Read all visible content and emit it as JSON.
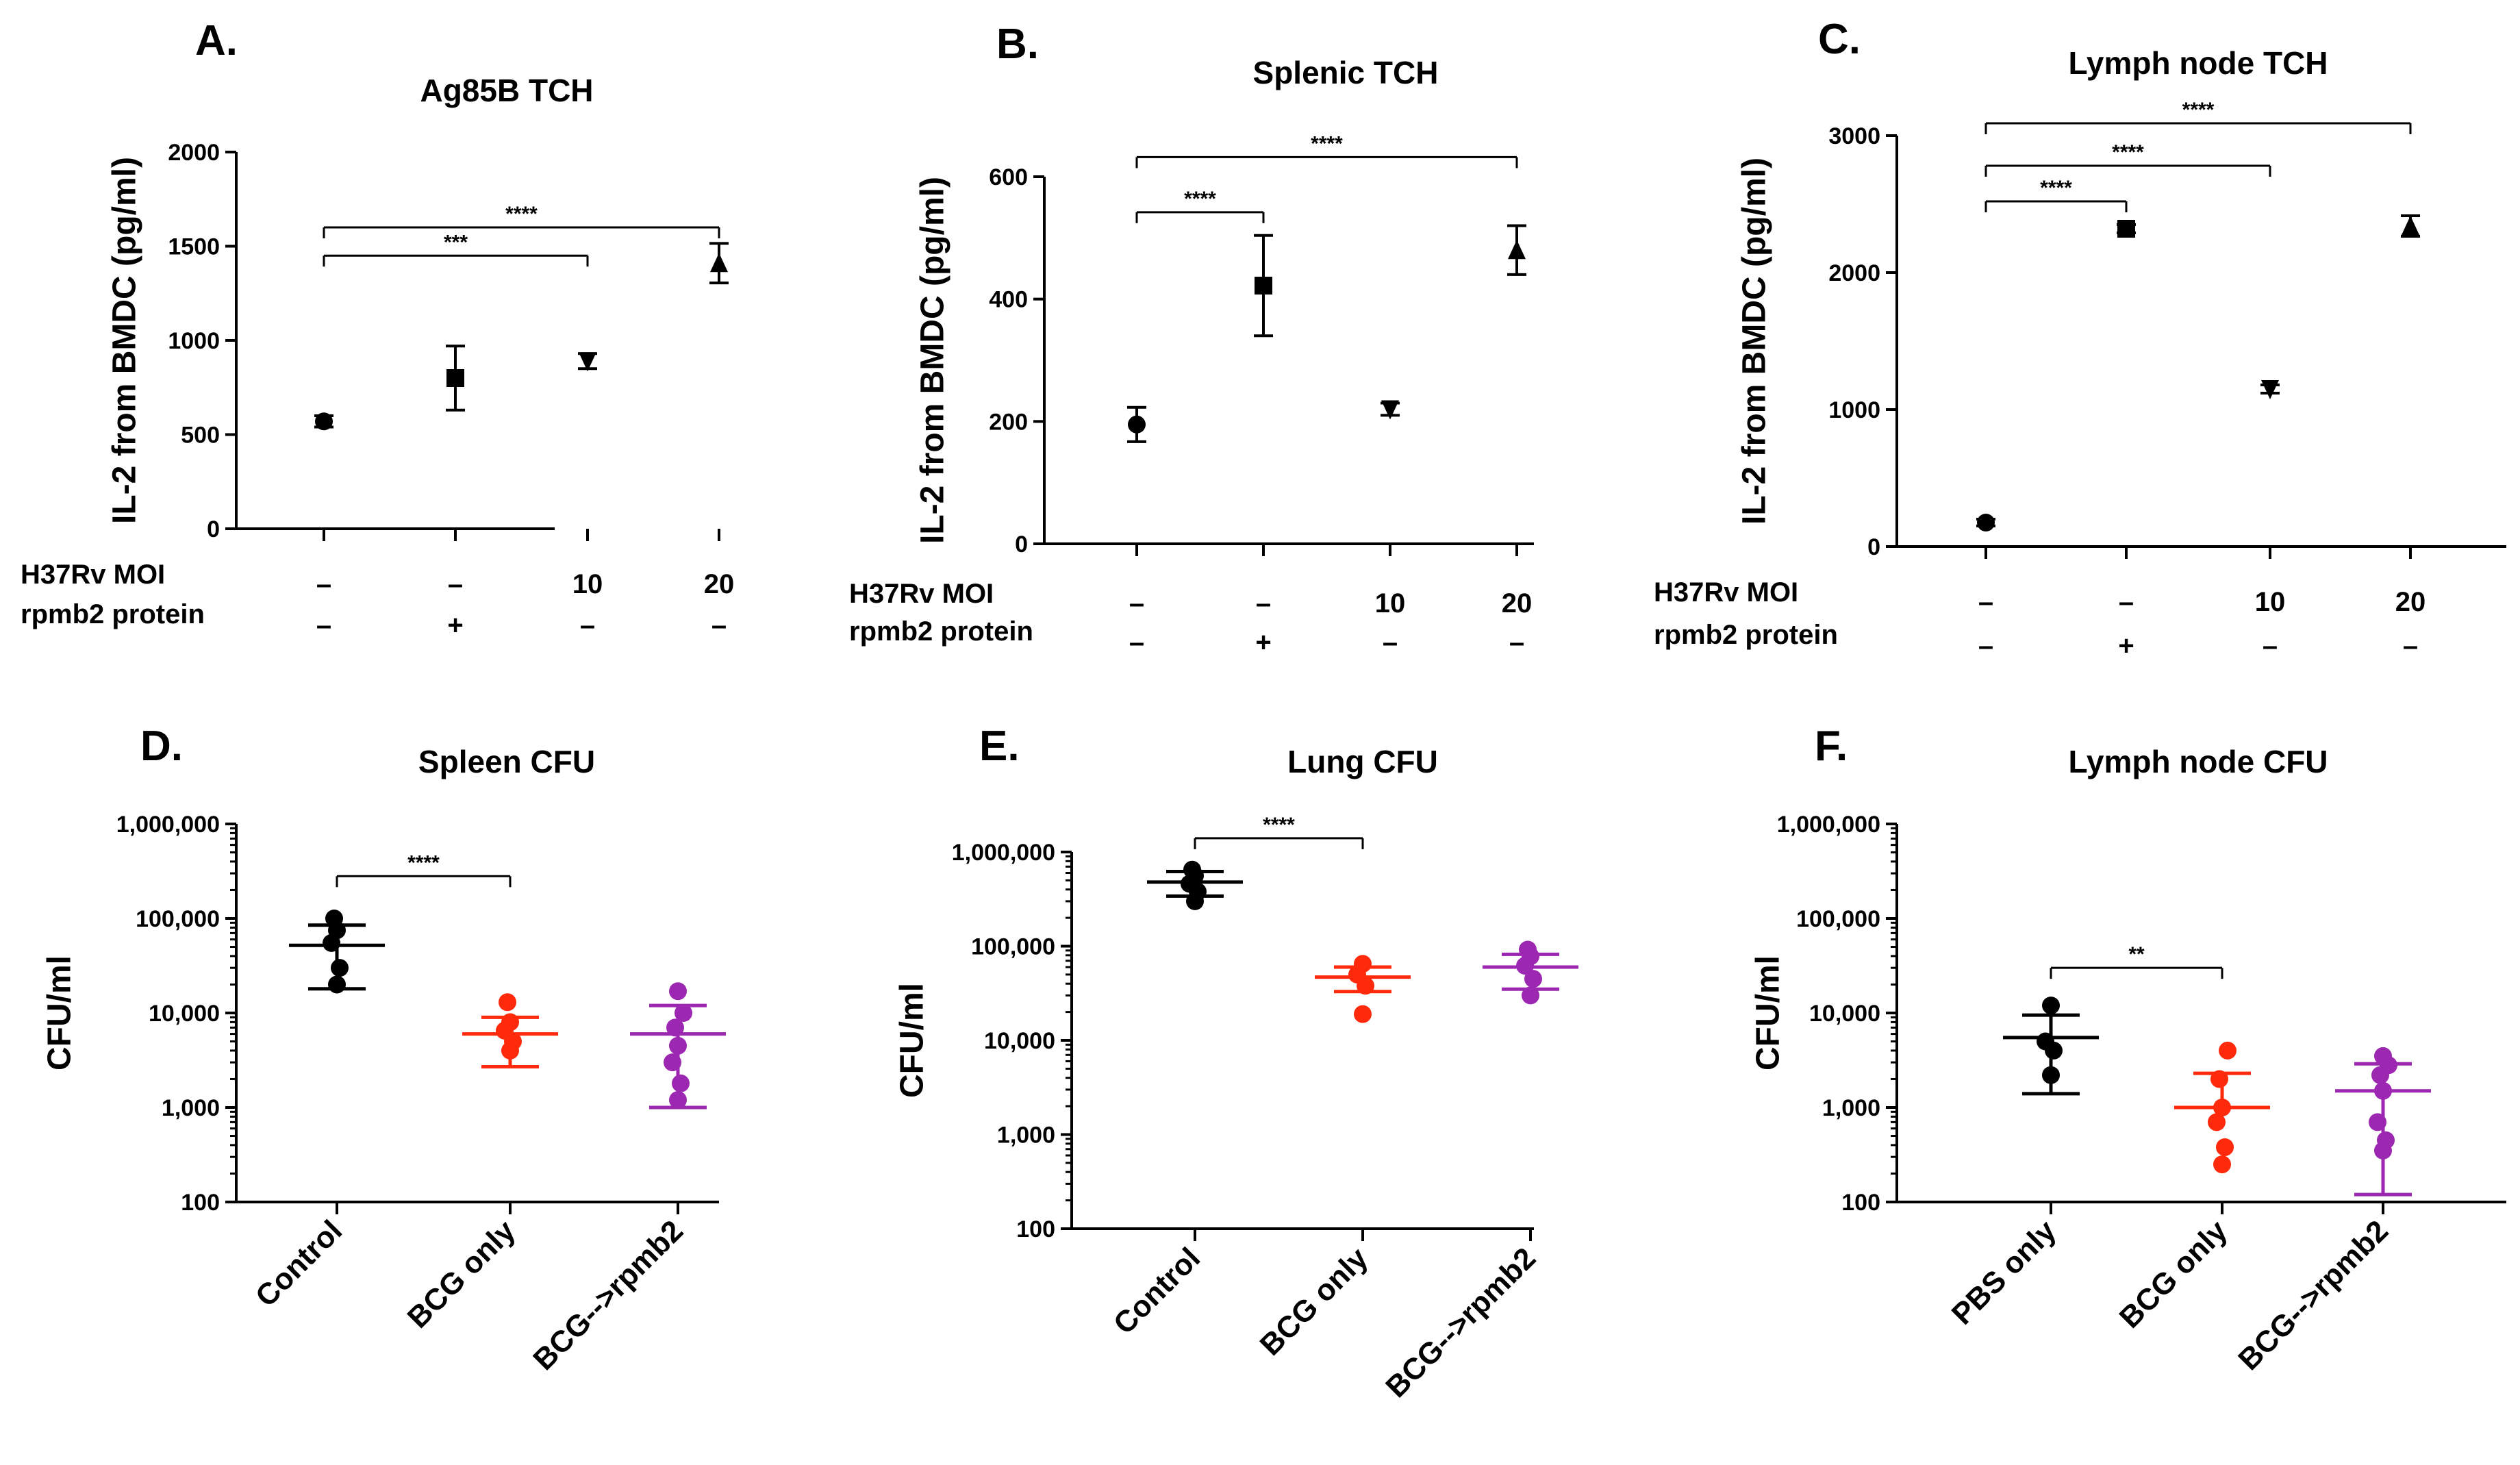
{
  "colors": {
    "control": "#000000",
    "bcg": "#ff2a0c",
    "rpmb2": "#9c27b0"
  },
  "chart_data": [
    {
      "letter": "A.",
      "type": "scatter",
      "title": "Ag85B TCH",
      "ylabel": "IL-2 from BMDC (pg/ml)",
      "ylim": [
        0,
        2000
      ],
      "yticks": [
        0,
        500,
        1000,
        1500,
        2000
      ],
      "ytick_labels": [
        "0",
        "500",
        "1000",
        "1500",
        "2000"
      ],
      "conditions": {
        "mo_label": "H37Rv MOI",
        "prot_label": "rpmb2 protein",
        "mo_values": [
          "–",
          "–",
          "10",
          "20"
        ],
        "prot_values": [
          "–",
          "+",
          "–",
          "–"
        ]
      },
      "points": [
        {
          "value": 570,
          "err": 30,
          "marker": "circle"
        },
        {
          "value": 800,
          "err": 170,
          "marker": "square"
        },
        {
          "value": 890,
          "err": 40,
          "marker": "tri-down"
        },
        {
          "value": 1410,
          "err": 105,
          "marker": "tri-up"
        }
      ],
      "brackets": [
        {
          "from": 0,
          "to": 2,
          "level": 1450,
          "label": "***"
        },
        {
          "from": 0,
          "to": 3,
          "level": 1600,
          "label": "****"
        }
      ]
    },
    {
      "letter": "B.",
      "type": "scatter",
      "title": "Splenic TCH",
      "ylabel": "IL-2 from BMDC (pg/ml)",
      "ylim": [
        0,
        600
      ],
      "yticks": [
        0,
        200,
        400,
        600
      ],
      "ytick_labels": [
        "0",
        "200",
        "400",
        "600"
      ],
      "conditions": {
        "mo_label": "H37Rv MOI",
        "prot_label": "rpmb2 protein",
        "mo_values": [
          "–",
          "–",
          "10",
          "20"
        ],
        "prot_values": [
          "–",
          "+",
          "–",
          "–"
        ]
      },
      "points": [
        {
          "value": 195,
          "err": 28,
          "marker": "circle"
        },
        {
          "value": 422,
          "err": 82,
          "marker": "square"
        },
        {
          "value": 220,
          "err": 10,
          "marker": "tri-down"
        },
        {
          "value": 480,
          "err": 40,
          "marker": "tri-up"
        }
      ],
      "brackets": [
        {
          "from": 0,
          "to": 1,
          "level": 542,
          "label": "****"
        },
        {
          "from": 0,
          "to": 3,
          "level": 632,
          "label": "****"
        }
      ]
    },
    {
      "letter": "C.",
      "type": "scatter",
      "title": "Lymph node TCH",
      "ylabel": "IL-2 from BMDC (pg/ml)",
      "ylim": [
        0,
        3000
      ],
      "yticks": [
        0,
        1000,
        2000,
        3000
      ],
      "ytick_labels": [
        "0",
        "1000",
        "2000",
        "3000"
      ],
      "conditions": {
        "mo_label": "H37Rv MOI",
        "prot_label": "rpmb2 protein",
        "mo_values": [
          "–",
          "–",
          "10",
          "20"
        ],
        "prot_values": [
          "–",
          "+",
          "–",
          "–"
        ]
      },
      "points": [
        {
          "value": 175,
          "err": 25,
          "marker": "circle"
        },
        {
          "value": 2320,
          "err": 30,
          "marker": "square"
        },
        {
          "value": 1150,
          "err": 30,
          "marker": "tri-down"
        },
        {
          "value": 2340,
          "err": 75,
          "marker": "tri-up"
        }
      ],
      "brackets": [
        {
          "from": 0,
          "to": 1,
          "level": 2520,
          "label": "****"
        },
        {
          "from": 0,
          "to": 2,
          "level": 2780,
          "label": "****"
        },
        {
          "from": 0,
          "to": 3,
          "level": 3090,
          "label": "****"
        }
      ]
    },
    {
      "letter": "D.",
      "type": "scatter",
      "scale": "log",
      "title": "Spleen CFU",
      "ylabel": "CFU/ml",
      "ylim": [
        100,
        1000000
      ],
      "yticks": [
        100,
        1000,
        10000,
        100000,
        1000000
      ],
      "ytick_labels": [
        "100",
        "1,000",
        "10,000",
        "100,000",
        "1,000,000"
      ],
      "categories": [
        "Control",
        "BCG only",
        "BCG-->rpmb2"
      ],
      "groups": [
        {
          "color": "control",
          "mean": 52000,
          "sd_low": 18000,
          "sd_high": 85000,
          "points": [
            20000,
            30000,
            55000,
            75000,
            100000
          ]
        },
        {
          "color": "bcg",
          "mean": 6000,
          "sd_low": 2700,
          "sd_high": 9000,
          "points": [
            4000,
            5000,
            6500,
            8000,
            13000
          ]
        },
        {
          "color": "rpmb2",
          "mean": 6000,
          "sd_low": 1000,
          "sd_high": 12000,
          "points": [
            1200,
            1800,
            3000,
            4500,
            7000,
            10000,
            17000
          ]
        }
      ],
      "brackets": [
        {
          "from": 0,
          "to": 1,
          "level": 280000,
          "label": "****"
        }
      ]
    },
    {
      "letter": "E.",
      "type": "scatter",
      "scale": "log",
      "title": "Lung CFU",
      "ylabel": "CFU/ml",
      "ylim": [
        100,
        1000000
      ],
      "yticks": [
        100,
        1000,
        10000,
        100000,
        1000000
      ],
      "ytick_labels": [
        "100",
        "1,000",
        "10,000",
        "100,000",
        "1,000,000"
      ],
      "categories": [
        "Control",
        "BCG only",
        "BCG-->rpmb2"
      ],
      "groups": [
        {
          "color": "control",
          "mean": 480000,
          "sd_low": 340000,
          "sd_high": 620000,
          "points": [
            300000,
            380000,
            460000,
            560000,
            650000
          ]
        },
        {
          "color": "bcg",
          "mean": 47000,
          "sd_low": 33000,
          "sd_high": 60000,
          "points": [
            19000,
            38000,
            50000,
            65000
          ]
        },
        {
          "color": "rpmb2",
          "mean": 60000,
          "sd_low": 35000,
          "sd_high": 82000,
          "points": [
            30000,
            45000,
            62000,
            78000,
            92000
          ]
        }
      ],
      "brackets": [
        {
          "from": 0,
          "to": 1,
          "level": 1400000,
          "label": "****"
        }
      ]
    },
    {
      "letter": "F.",
      "type": "scatter",
      "scale": "log",
      "title": "Lymph node CFU",
      "ylabel": "CFU/ml",
      "ylim": [
        100,
        1000000
      ],
      "yticks": [
        100,
        1000,
        10000,
        100000,
        1000000
      ],
      "ytick_labels": [
        "100",
        "1,000",
        "10,000",
        "100,000",
        "1,000,000"
      ],
      "categories": [
        "PBS only",
        "BCG only",
        "BCG-->rpmb2"
      ],
      "groups": [
        {
          "color": "control",
          "mean": 5500,
          "sd_low": 1400,
          "sd_high": 9500,
          "points": [
            2200,
            4000,
            5000,
            12000
          ]
        },
        {
          "color": "bcg",
          "mean": 1000,
          "sd_low": 1000,
          "sd_high": 2300,
          "points": [
            250,
            380,
            700,
            1000,
            2000,
            4000
          ]
        },
        {
          "color": "rpmb2",
          "mean": 1500,
          "sd_low": 120,
          "sd_high": 2900,
          "points": [
            350,
            450,
            700,
            1500,
            2200,
            2800,
            3500
          ]
        }
      ],
      "brackets": [
        {
          "from": 0,
          "to": 1,
          "level": 30000,
          "label": "**"
        }
      ]
    }
  ]
}
